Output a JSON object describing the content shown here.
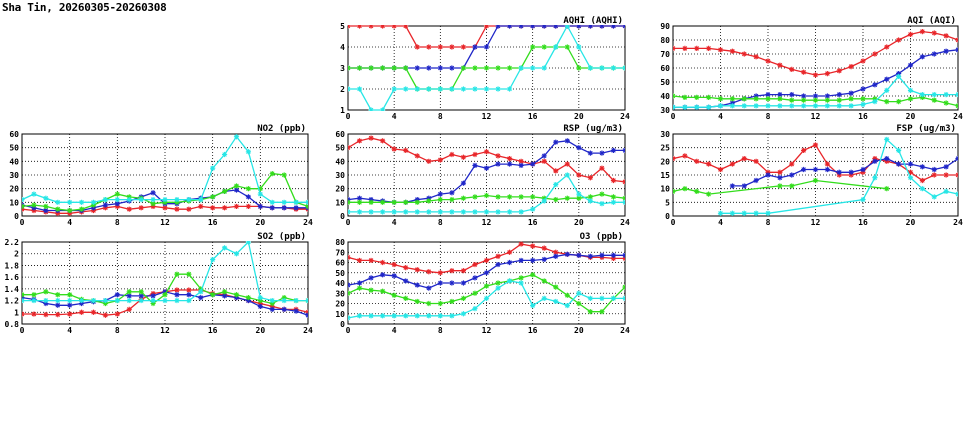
{
  "page_title": "Sha Tin, 20260305-20260308",
  "colors": {
    "red": "#e8262a",
    "blue": "#1f26c8",
    "green": "#33dd1c",
    "cyan": "#27e6e6"
  },
  "chart_data": [
    {
      "type": "line",
      "title": "AQHI (AQHI)",
      "xlim": [
        0,
        24
      ],
      "ylim": [
        1,
        5
      ],
      "xticks": [
        0,
        4,
        8,
        12,
        16,
        20,
        24
      ],
      "yticks": [
        1,
        2,
        3,
        4,
        5
      ],
      "grid": true,
      "series": [
        {
          "color": "red",
          "values": [
            5,
            5,
            5,
            5,
            5,
            5,
            4,
            4,
            4,
            4,
            4,
            4,
            5,
            5,
            5,
            5,
            5,
            5,
            5,
            5,
            5,
            5,
            5,
            5,
            5
          ]
        },
        {
          "color": "blue",
          "values": [
            3,
            3,
            3,
            3,
            3,
            3,
            3,
            3,
            3,
            3,
            3,
            4,
            4,
            5,
            5,
            5,
            5,
            5,
            5,
            5,
            5,
            5,
            5,
            5,
            5
          ]
        },
        {
          "color": "green",
          "values": [
            3,
            3,
            3,
            3,
            3,
            3,
            2,
            2,
            2,
            2,
            3,
            3,
            3,
            3,
            3,
            3,
            4,
            4,
            4,
            4,
            3,
            3,
            3,
            3,
            3
          ]
        },
        {
          "color": "cyan",
          "values": [
            2,
            2,
            1,
            1,
            2,
            2,
            2,
            2,
            2,
            2,
            2,
            2,
            2,
            2,
            2,
            3,
            3,
            3,
            4,
            5,
            4,
            3,
            3,
            3,
            3
          ]
        }
      ]
    },
    {
      "type": "line",
      "title": "AQI (AQI)",
      "xlim": [
        0,
        24
      ],
      "ylim": [
        30,
        90
      ],
      "xticks": [
        0,
        4,
        8,
        12,
        16,
        20,
        24
      ],
      "yticks": [
        30,
        40,
        50,
        60,
        70,
        80,
        90
      ],
      "grid": true,
      "series": [
        {
          "color": "red",
          "values": [
            74,
            74,
            74,
            74,
            73,
            72,
            70,
            68,
            65,
            62,
            59,
            57,
            55,
            56,
            58,
            61,
            65,
            70,
            75,
            80,
            84,
            86,
            85,
            83,
            80
          ]
        },
        {
          "color": "blue",
          "values": [
            32,
            32,
            32,
            32,
            33,
            35,
            38,
            40,
            41,
            41,
            41,
            40,
            40,
            40,
            41,
            42,
            45,
            48,
            52,
            56,
            62,
            68,
            70,
            72,
            73
          ]
        },
        {
          "color": "green",
          "values": [
            40,
            39,
            39,
            39,
            38,
            38,
            38,
            38,
            38,
            38,
            37,
            37,
            37,
            37,
            37,
            38,
            38,
            38,
            36,
            36,
            38,
            39,
            37,
            35,
            33
          ]
        },
        {
          "color": "cyan",
          "values": [
            32,
            32,
            32,
            32,
            33,
            33,
            33,
            33,
            33,
            33,
            33,
            33,
            33,
            33,
            33,
            33,
            34,
            36,
            44,
            54,
            44,
            41,
            41,
            41,
            41
          ]
        }
      ]
    },
    {
      "type": "line",
      "title": "NO2 (ppb)",
      "xlim": [
        0,
        24
      ],
      "ylim": [
        0,
        60
      ],
      "xticks": [
        0,
        4,
        8,
        12,
        16,
        20,
        24
      ],
      "yticks": [
        0,
        10,
        20,
        30,
        40,
        50,
        60
      ],
      "grid": true,
      "series": [
        {
          "color": "red",
          "values": [
            5,
            4,
            3,
            2,
            2,
            3,
            4,
            6,
            7,
            5,
            6,
            7,
            6,
            5,
            5,
            7,
            6,
            6,
            7,
            7,
            7,
            6,
            6,
            5,
            5
          ]
        },
        {
          "color": "blue",
          "values": [
            8,
            6,
            4,
            4,
            4,
            4,
            6,
            8,
            9,
            11,
            14,
            17,
            9,
            9,
            12,
            13,
            14,
            18,
            19,
            14,
            7,
            6,
            6,
            6,
            6
          ]
        },
        {
          "color": "green",
          "values": [
            7,
            8,
            7,
            5,
            4,
            5,
            8,
            12,
            16,
            14,
            13,
            9,
            10,
            10,
            11,
            12,
            14,
            18,
            22,
            20,
            20,
            31,
            30,
            10,
            7
          ]
        },
        {
          "color": "cyan",
          "values": [
            12,
            16,
            13,
            10,
            10,
            10,
            10,
            12,
            12,
            12,
            12,
            12,
            12,
            12,
            12,
            12,
            35,
            45,
            58,
            47,
            16,
            10,
            10,
            10,
            10
          ]
        }
      ]
    },
    {
      "type": "line",
      "title": "RSP (ug/m3)",
      "xlim": [
        0,
        24
      ],
      "ylim": [
        0,
        60
      ],
      "xticks": [
        0,
        4,
        8,
        12,
        16,
        20,
        24
      ],
      "yticks": [
        0,
        10,
        20,
        30,
        40,
        50,
        60
      ],
      "grid": true,
      "series": [
        {
          "color": "red",
          "values": [
            50,
            55,
            57,
            55,
            49,
            48,
            44,
            40,
            41,
            45,
            43,
            45,
            47,
            44,
            42,
            40,
            38,
            40,
            33,
            38,
            30,
            28,
            35,
            26,
            25
          ]
        },
        {
          "color": "blue",
          "values": [
            12,
            13,
            12,
            11,
            10,
            10,
            12,
            13,
            16,
            17,
            24,
            37,
            35,
            38,
            38,
            37,
            38,
            44,
            54,
            55,
            50,
            46,
            46,
            48,
            48
          ]
        },
        {
          "color": "green",
          "values": [
            10,
            10,
            10,
            10,
            10,
            10,
            10,
            11,
            12,
            12,
            13,
            14,
            15,
            14,
            14,
            14,
            14,
            13,
            12,
            13,
            13,
            14,
            16,
            14,
            13
          ]
        },
        {
          "color": "cyan",
          "values": [
            3,
            3,
            3,
            3,
            3,
            3,
            3,
            3,
            3,
            3,
            3,
            3,
            3,
            3,
            3,
            3,
            5,
            11,
            23,
            30,
            16,
            11,
            9,
            10,
            10
          ]
        }
      ]
    },
    {
      "type": "line",
      "title": "FSP (ug/m3)",
      "xlim": [
        0,
        24
      ],
      "ylim": [
        0,
        30
      ],
      "xticks": [
        0,
        4,
        8,
        12,
        16,
        20,
        24
      ],
      "yticks": [
        0,
        5,
        10,
        15,
        20,
        25,
        30
      ],
      "grid": true,
      "series": [
        {
          "color": "red",
          "values": [
            21,
            22,
            20,
            19,
            17,
            19,
            21,
            20,
            16,
            16,
            19,
            24,
            26,
            19,
            15,
            15,
            16,
            21,
            20,
            19,
            16,
            13,
            15,
            15,
            15
          ]
        },
        {
          "color": "blue",
          "values": [
            null,
            null,
            null,
            null,
            null,
            11,
            11,
            13,
            15,
            14,
            15,
            17,
            17,
            17,
            16,
            16,
            17,
            20,
            21,
            19,
            19,
            18,
            17,
            18,
            21
          ]
        },
        {
          "color": "green",
          "values": [
            9,
            10,
            9,
            8,
            null,
            null,
            null,
            null,
            null,
            11,
            11,
            null,
            13,
            null,
            null,
            null,
            null,
            null,
            10,
            null,
            null,
            null,
            null,
            null,
            null
          ]
        },
        {
          "color": "cyan",
          "values": [
            null,
            null,
            null,
            null,
            1,
            1,
            1,
            1,
            1,
            null,
            null,
            null,
            null,
            null,
            null,
            null,
            6,
            14,
            28,
            24,
            14,
            10,
            7,
            9,
            8
          ]
        }
      ]
    },
    {
      "type": "line",
      "title": "SO2 (ppb)",
      "xlim": [
        0,
        24
      ],
      "ylim": [
        0.8,
        2.2
      ],
      "xticks": [
        0,
        4,
        8,
        12,
        16,
        20,
        24
      ],
      "yticks": [
        0.8,
        1.0,
        1.2,
        1.4,
        1.6,
        1.8,
        2.0,
        2.2
      ],
      "grid": true,
      "series": [
        {
          "color": "red",
          "values": [
            0.97,
            0.97,
            0.96,
            0.96,
            0.97,
            1.0,
            1.0,
            0.95,
            0.97,
            1.05,
            1.22,
            1.32,
            1.35,
            1.38,
            1.38,
            1.38,
            1.32,
            1.3,
            1.25,
            1.2,
            1.15,
            1.1,
            1.05,
            1.05,
            1.0
          ]
        },
        {
          "color": "blue",
          "values": [
            1.25,
            1.22,
            1.15,
            1.12,
            1.12,
            1.15,
            1.18,
            1.2,
            1.3,
            1.28,
            1.28,
            1.28,
            1.35,
            1.3,
            1.3,
            1.25,
            1.3,
            1.28,
            1.25,
            1.2,
            1.1,
            1.05,
            1.05,
            1.02,
            0.95
          ]
        },
        {
          "color": "green",
          "values": [
            1.3,
            1.3,
            1.35,
            1.3,
            1.3,
            1.22,
            1.2,
            1.15,
            1.2,
            1.35,
            1.35,
            1.15,
            1.3,
            1.65,
            1.65,
            1.4,
            1.3,
            1.35,
            1.3,
            1.25,
            1.2,
            1.15,
            1.25,
            1.2,
            1.2
          ]
        },
        {
          "color": "cyan",
          "values": [
            1.2,
            1.2,
            1.2,
            1.2,
            1.2,
            1.2,
            1.2,
            1.2,
            1.2,
            1.2,
            1.2,
            1.2,
            1.2,
            1.2,
            1.2,
            1.35,
            1.9,
            2.1,
            2.0,
            2.2,
            1.25,
            1.2,
            1.2,
            1.2,
            1.2
          ]
        }
      ]
    },
    {
      "type": "line",
      "title": "O3 (ppb)",
      "xlim": [
        0,
        24
      ],
      "ylim": [
        0,
        80
      ],
      "xticks": [
        0,
        4,
        8,
        12,
        16,
        20,
        24
      ],
      "yticks": [
        0,
        10,
        20,
        30,
        40,
        50,
        60,
        70,
        80
      ],
      "grid": true,
      "series": [
        {
          "color": "red",
          "values": [
            65,
            62,
            62,
            60,
            58,
            55,
            53,
            51,
            50,
            52,
            52,
            58,
            62,
            66,
            70,
            78,
            76,
            74,
            70,
            68,
            67,
            65,
            65,
            64,
            64
          ]
        },
        {
          "color": "blue",
          "values": [
            38,
            40,
            45,
            48,
            47,
            42,
            38,
            35,
            40,
            40,
            40,
            45,
            50,
            58,
            60,
            62,
            62,
            63,
            66,
            68,
            67,
            66,
            67,
            67,
            67
          ]
        },
        {
          "color": "green",
          "values": [
            30,
            35,
            33,
            32,
            28,
            25,
            22,
            20,
            20,
            22,
            25,
            30,
            37,
            40,
            42,
            45,
            48,
            42,
            36,
            28,
            20,
            12,
            12,
            25,
            36
          ]
        },
        {
          "color": "cyan",
          "values": [
            6,
            8,
            8,
            8,
            8,
            8,
            8,
            8,
            8,
            8,
            10,
            15,
            25,
            35,
            42,
            40,
            18,
            25,
            22,
            18,
            30,
            25,
            25,
            25,
            25
          ]
        }
      ]
    }
  ]
}
